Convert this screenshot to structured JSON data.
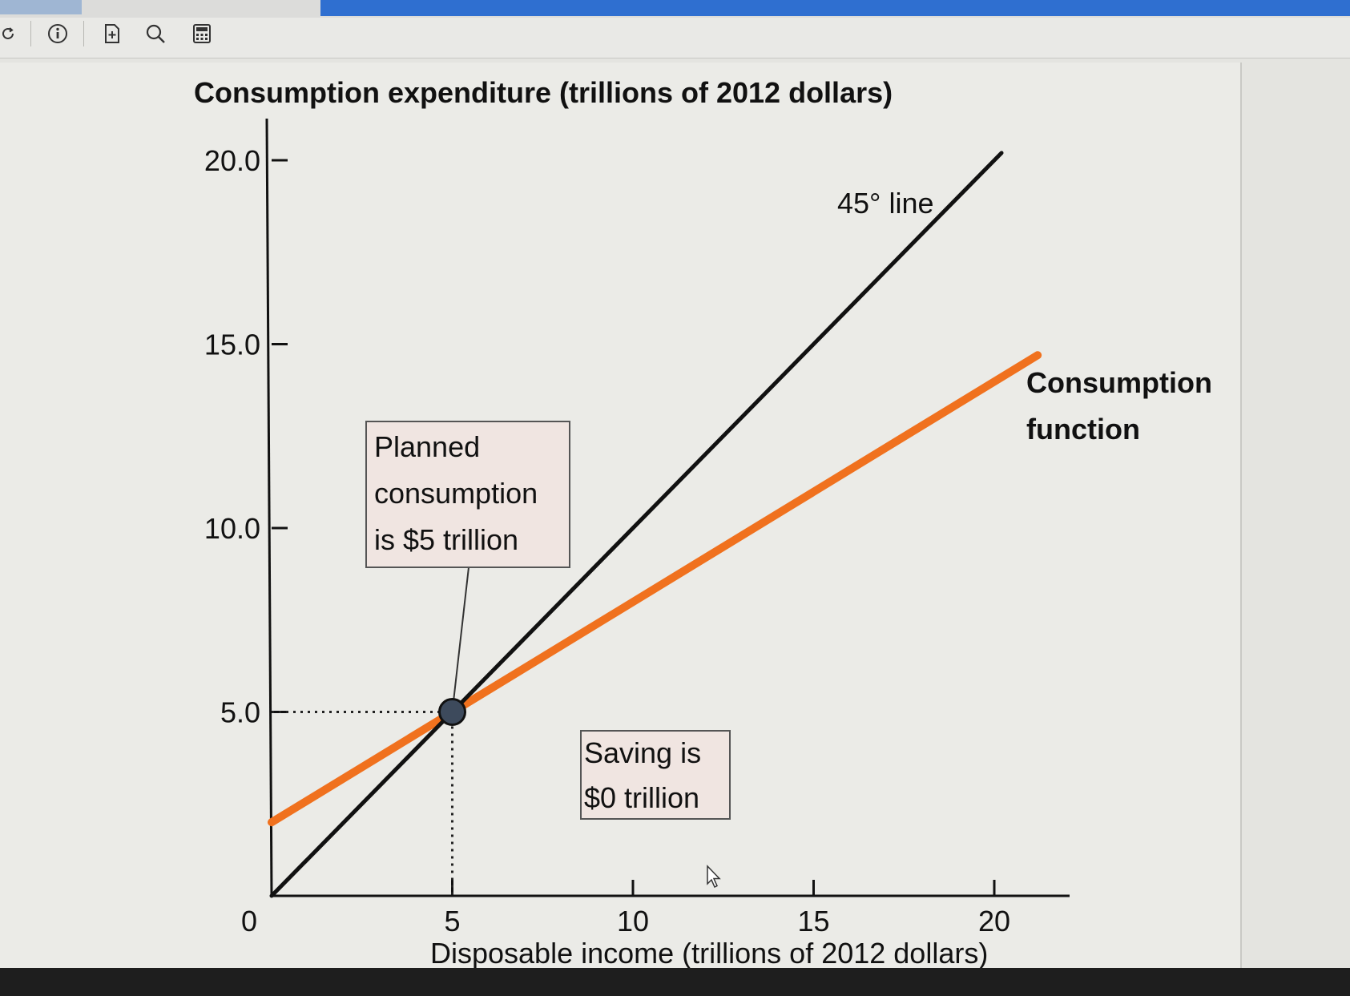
{
  "toolbar": {
    "icons": [
      "refresh-icon",
      "info-icon",
      "add-file-icon",
      "search-icon",
      "calculator-icon"
    ]
  },
  "chart_data": {
    "type": "line",
    "title": "Consumption expenditure (trillions of 2012 dollars)",
    "xlabel": "Disposable income (trillions of 2012 dollars)",
    "ylabel": "Consumption expenditure (trillions of 2012 dollars)",
    "xlim": [
      0,
      22
    ],
    "ylim": [
      0,
      20
    ],
    "x_ticks": [
      {
        "value": 0,
        "label": "0"
      },
      {
        "value": 5,
        "label": "5"
      },
      {
        "value": 10,
        "label": "10"
      },
      {
        "value": 15,
        "label": "15"
      },
      {
        "value": 20,
        "label": "20"
      }
    ],
    "y_ticks": [
      {
        "value": 5,
        "label": "5.0"
      },
      {
        "value": 10,
        "label": "10.0"
      },
      {
        "value": 15,
        "label": "15.0"
      },
      {
        "value": 20,
        "label": "20.0"
      }
    ],
    "grid": false,
    "series": [
      {
        "name": "45° line",
        "color": "#111111",
        "points": [
          [
            0,
            0
          ],
          [
            20.2,
            20.2
          ]
        ]
      },
      {
        "name": "Consumption function",
        "color": "#f0711e",
        "points": [
          [
            0,
            2
          ],
          [
            21.2,
            14.7
          ]
        ]
      }
    ],
    "point": {
      "x": 5,
      "y": 5,
      "color": "#3d4a5c"
    },
    "annotations": {
      "planned_lines": [
        "Planned",
        "consumption",
        "is $5 trillion"
      ],
      "saving_lines": [
        "Saving is",
        "$0 trillion"
      ],
      "consumption_label_lines": [
        "Consumption",
        "function"
      ],
      "line45_label": "45° line"
    }
  }
}
